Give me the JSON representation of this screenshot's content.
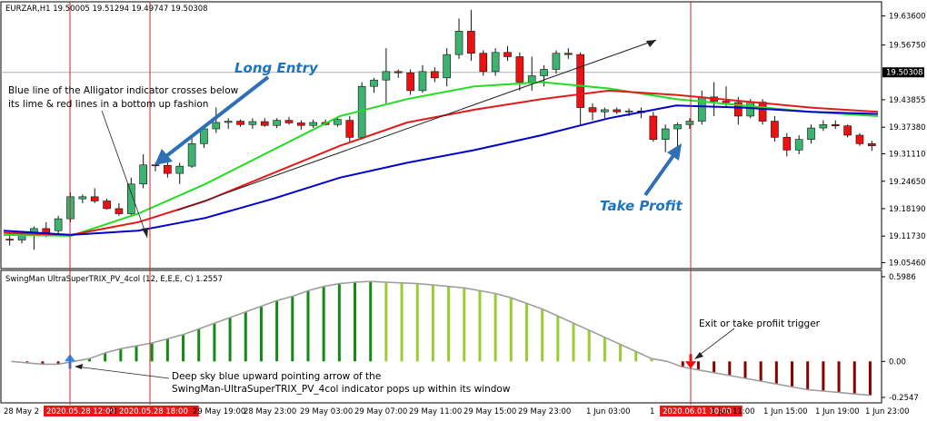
{
  "chart_data": {
    "type": "candlestick",
    "symbol_header": "EURZAR,H1  19.50005 19.51294 19.49747 19.50308",
    "price_axis": {
      "ylim": [
        19.045,
        19.665
      ],
      "ticks": [
        "19.63600",
        "19.56750",
        "19.43855",
        "19.37380",
        "19.31110",
        "19.24650",
        "19.18190",
        "19.11730",
        "19.05460"
      ],
      "tick_values": [
        19.636,
        19.5675,
        19.43855,
        19.3738,
        19.3111,
        19.2465,
        19.1819,
        19.1173,
        19.0546
      ],
      "current_price": 19.50308,
      "current_price_label": "19.50308"
    },
    "time_axis": {
      "labels": [
        "28 May 2",
        "2020.05.28 12:00",
        "28 May",
        "2020.05.28 18:00",
        "29 May 19:00",
        "28 May 23:00",
        "29 May 03:00",
        "29 May 07:00",
        "29 May 11:00",
        "29 May 15:00",
        "29 May 23:00",
        "1 Jun 03:00",
        "1",
        "2020.06.01 10:00",
        "1 Jun 11:00",
        "1 Jun 15:00",
        "1 Jun 19:00",
        "1 Jun 23:00"
      ],
      "highlighted": [
        "2020.05.28 12:00",
        "2020.05.28 18:00",
        "2020.06.01 10:00"
      ]
    },
    "candles": [
      {
        "o": 19.11,
        "h": 19.125,
        "l": 19.095,
        "c": 19.108
      },
      {
        "o": 19.108,
        "h": 19.13,
        "l": 19.1,
        "c": 19.12
      },
      {
        "o": 19.12,
        "h": 19.14,
        "l": 19.085,
        "c": 19.135
      },
      {
        "o": 19.135,
        "h": 19.15,
        "l": 19.115,
        "c": 19.125
      },
      {
        "o": 19.13,
        "h": 19.165,
        "l": 19.12,
        "c": 19.158
      },
      {
        "o": 19.158,
        "h": 19.22,
        "l": 19.15,
        "c": 19.21
      },
      {
        "o": 19.205,
        "h": 19.215,
        "l": 19.195,
        "c": 19.21
      },
      {
        "o": 19.21,
        "h": 19.23,
        "l": 19.195,
        "c": 19.2
      },
      {
        "o": 19.2,
        "h": 19.205,
        "l": 19.18,
        "c": 19.182
      },
      {
        "o": 19.182,
        "h": 19.195,
        "l": 19.165,
        "c": 19.17
      },
      {
        "o": 19.17,
        "h": 19.255,
        "l": 19.165,
        "c": 19.24
      },
      {
        "o": 19.24,
        "h": 19.31,
        "l": 19.23,
        "c": 19.285
      },
      {
        "o": 19.285,
        "h": 19.29,
        "l": 19.27,
        "c": 19.284
      },
      {
        "o": 19.284,
        "h": 19.292,
        "l": 19.255,
        "c": 19.265
      },
      {
        "o": 19.265,
        "h": 19.29,
        "l": 19.24,
        "c": 19.282
      },
      {
        "o": 19.282,
        "h": 19.35,
        "l": 19.278,
        "c": 19.335
      },
      {
        "o": 19.335,
        "h": 19.378,
        "l": 19.325,
        "c": 19.37
      },
      {
        "o": 19.37,
        "h": 19.42,
        "l": 19.36,
        "c": 19.385
      },
      {
        "o": 19.385,
        "h": 19.395,
        "l": 19.37,
        "c": 19.388
      },
      {
        "o": 19.388,
        "h": 19.392,
        "l": 19.375,
        "c": 19.38
      },
      {
        "o": 19.38,
        "h": 19.395,
        "l": 19.37,
        "c": 19.387
      },
      {
        "o": 19.387,
        "h": 19.395,
        "l": 19.375,
        "c": 19.378
      },
      {
        "o": 19.378,
        "h": 19.395,
        "l": 19.372,
        "c": 19.39
      },
      {
        "o": 19.39,
        "h": 19.398,
        "l": 19.38,
        "c": 19.384
      },
      {
        "o": 19.384,
        "h": 19.39,
        "l": 19.368,
        "c": 19.378
      },
      {
        "o": 19.378,
        "h": 19.392,
        "l": 19.372,
        "c": 19.385
      },
      {
        "o": 19.385,
        "h": 19.392,
        "l": 19.378,
        "c": 19.38
      },
      {
        "o": 19.38,
        "h": 19.395,
        "l": 19.375,
        "c": 19.392
      },
      {
        "o": 19.39,
        "h": 19.4,
        "l": 19.34,
        "c": 19.35
      },
      {
        "o": 19.35,
        "h": 19.48,
        "l": 19.345,
        "c": 19.47
      },
      {
        "o": 19.47,
        "h": 19.49,
        "l": 19.455,
        "c": 19.485
      },
      {
        "o": 19.485,
        "h": 19.56,
        "l": 19.43,
        "c": 19.505
      },
      {
        "o": 19.505,
        "h": 19.51,
        "l": 19.49,
        "c": 19.502
      },
      {
        "o": 19.502,
        "h": 19.51,
        "l": 19.45,
        "c": 19.46
      },
      {
        "o": 19.46,
        "h": 19.52,
        "l": 19.455,
        "c": 19.505
      },
      {
        "o": 19.505,
        "h": 19.515,
        "l": 19.48,
        "c": 19.49
      },
      {
        "o": 19.49,
        "h": 19.56,
        "l": 19.47,
        "c": 19.545
      },
      {
        "o": 19.545,
        "h": 19.63,
        "l": 19.535,
        "c": 19.6
      },
      {
        "o": 19.6,
        "h": 19.65,
        "l": 19.53,
        "c": 19.548
      },
      {
        "o": 19.548,
        "h": 19.555,
        "l": 19.495,
        "c": 19.505
      },
      {
        "o": 19.505,
        "h": 19.56,
        "l": 19.495,
        "c": 19.55
      },
      {
        "o": 19.55,
        "h": 19.565,
        "l": 19.53,
        "c": 19.54
      },
      {
        "o": 19.54,
        "h": 19.55,
        "l": 19.46,
        "c": 19.48
      },
      {
        "o": 19.48,
        "h": 19.54,
        "l": 19.46,
        "c": 19.495
      },
      {
        "o": 19.495,
        "h": 19.52,
        "l": 19.47,
        "c": 19.51
      },
      {
        "o": 19.51,
        "h": 19.555,
        "l": 19.5,
        "c": 19.548
      },
      {
        "o": 19.548,
        "h": 19.56,
        "l": 19.535,
        "c": 19.545
      },
      {
        "o": 19.545,
        "h": 19.55,
        "l": 19.38,
        "c": 19.42
      },
      {
        "o": 19.42,
        "h": 19.43,
        "l": 19.39,
        "c": 19.41
      },
      {
        "o": 19.41,
        "h": 19.42,
        "l": 19.395,
        "c": 19.415
      },
      {
        "o": 19.415,
        "h": 19.42,
        "l": 19.405,
        "c": 19.41
      },
      {
        "o": 19.41,
        "h": 19.418,
        "l": 19.4,
        "c": 19.412
      },
      {
        "o": 19.412,
        "h": 19.42,
        "l": 19.395,
        "c": 19.408
      },
      {
        "o": 19.4,
        "h": 19.41,
        "l": 19.34,
        "c": 19.345
      },
      {
        "o": 19.345,
        "h": 19.38,
        "l": 19.315,
        "c": 19.37
      },
      {
        "o": 19.37,
        "h": 19.385,
        "l": 19.32,
        "c": 19.38
      },
      {
        "o": 19.38,
        "h": 19.395,
        "l": 19.37,
        "c": 19.388
      },
      {
        "o": 19.388,
        "h": 19.46,
        "l": 19.38,
        "c": 19.445
      },
      {
        "o": 19.445,
        "h": 19.48,
        "l": 19.4,
        "c": 19.435
      },
      {
        "o": 19.435,
        "h": 19.47,
        "l": 19.42,
        "c": 19.432
      },
      {
        "o": 19.432,
        "h": 19.445,
        "l": 19.38,
        "c": 19.4
      },
      {
        "o": 19.4,
        "h": 19.44,
        "l": 19.395,
        "c": 19.433
      },
      {
        "o": 19.433,
        "h": 19.44,
        "l": 19.38,
        "c": 19.388
      },
      {
        "o": 19.388,
        "h": 19.4,
        "l": 19.34,
        "c": 19.35
      },
      {
        "o": 19.35,
        "h": 19.36,
        "l": 19.305,
        "c": 19.32
      },
      {
        "o": 19.32,
        "h": 19.355,
        "l": 19.31,
        "c": 19.345
      },
      {
        "o": 19.345,
        "h": 19.38,
        "l": 19.335,
        "c": 19.372
      },
      {
        "o": 19.372,
        "h": 19.39,
        "l": 19.365,
        "c": 19.38
      },
      {
        "o": 19.38,
        "h": 19.39,
        "l": 19.37,
        "c": 19.377
      },
      {
        "o": 19.377,
        "h": 19.38,
        "l": 19.35,
        "c": 19.355
      },
      {
        "o": 19.355,
        "h": 19.36,
        "l": 19.33,
        "c": 19.335
      },
      {
        "o": 19.335,
        "h": 19.342,
        "l": 19.318,
        "c": 19.33
      }
    ],
    "alligator": {
      "blue_jaw": [
        [
          0,
          19.13
        ],
        [
          10,
          19.12
        ],
        [
          20,
          19.13
        ],
        [
          30,
          19.16
        ],
        [
          40,
          19.205
        ],
        [
          50,
          19.255
        ],
        [
          60,
          19.29
        ],
        [
          70,
          19.32
        ],
        [
          80,
          19.355
        ],
        [
          90,
          19.395
        ],
        [
          100,
          19.425
        ],
        [
          110,
          19.42
        ],
        [
          120,
          19.41
        ],
        [
          130,
          19.405
        ]
      ],
      "red_teeth": [
        [
          0,
          19.125
        ],
        [
          10,
          19.12
        ],
        [
          20,
          19.15
        ],
        [
          30,
          19.2
        ],
        [
          40,
          19.265
        ],
        [
          50,
          19.33
        ],
        [
          60,
          19.385
        ],
        [
          70,
          19.415
        ],
        [
          80,
          19.44
        ],
        [
          90,
          19.46
        ],
        [
          100,
          19.45
        ],
        [
          110,
          19.435
        ],
        [
          120,
          19.42
        ],
        [
          130,
          19.41
        ]
      ],
      "lime_lips": [
        [
          0,
          19.12
        ],
        [
          10,
          19.118
        ],
        [
          20,
          19.17
        ],
        [
          30,
          19.24
        ],
        [
          40,
          19.32
        ],
        [
          50,
          19.4
        ],
        [
          60,
          19.44
        ],
        [
          70,
          19.47
        ],
        [
          80,
          19.48
        ],
        [
          90,
          19.465
        ],
        [
          100,
          19.44
        ],
        [
          110,
          19.425
        ],
        [
          120,
          19.41
        ],
        [
          130,
          19.4
        ]
      ],
      "colors": {
        "blue": "#0000cc",
        "red": "#e31a1a",
        "lime": "#22dd22"
      }
    },
    "indicator": {
      "title": "SwingMan UltraSuperTRIX_PV_4col (12, E,E,E, C) 1.2557",
      "ylim": [
        -0.2547,
        0.5986
      ],
      "ticks": [
        "0.5986",
        "0.00",
        "-0.2547"
      ],
      "tick_values": [
        0.5986,
        0.0,
        -0.2547
      ],
      "values": [
        0.0,
        -0.01,
        -0.02,
        -0.02,
        0.0,
        0.02,
        0.06,
        0.09,
        0.11,
        0.13,
        0.16,
        0.19,
        0.23,
        0.27,
        0.31,
        0.35,
        0.39,
        0.43,
        0.46,
        0.5,
        0.53,
        0.55,
        0.56,
        0.565,
        0.56,
        0.555,
        0.55,
        0.54,
        0.53,
        0.52,
        0.5,
        0.48,
        0.45,
        0.41,
        0.37,
        0.32,
        0.27,
        0.22,
        0.17,
        0.12,
        0.07,
        0.02,
        0.0,
        -0.04,
        -0.06,
        -0.08,
        -0.1,
        -0.12,
        -0.14,
        -0.16,
        -0.18,
        -0.2,
        -0.21,
        -0.22,
        -0.23,
        -0.24
      ],
      "colors": {
        "rising_strong": "#138a13",
        "falling_weak": "#9acd32",
        "falling_strong": "#8b0000",
        "rising_weak": "#cd5c5c",
        "line": "#9e9e9e",
        "up_arrow": "#1e90ff",
        "down_arrow": "#ff0000"
      }
    },
    "annotations": {
      "long_entry": "Long Entry",
      "take_profit": "Take Profit",
      "alligator_note_line1": "Blue line of the Alligator indicator crosses below",
      "alligator_note_line2": "its lime & red lines in a bottom up fashion",
      "exit_note": "Exit or take profiit trigger",
      "arrow_note_line1": "Deep sky blue upward pointing arrow of the",
      "arrow_note_line2": "SwingMan-UltraSuperTRIX_PV_4col indicator pops up within its window"
    }
  }
}
